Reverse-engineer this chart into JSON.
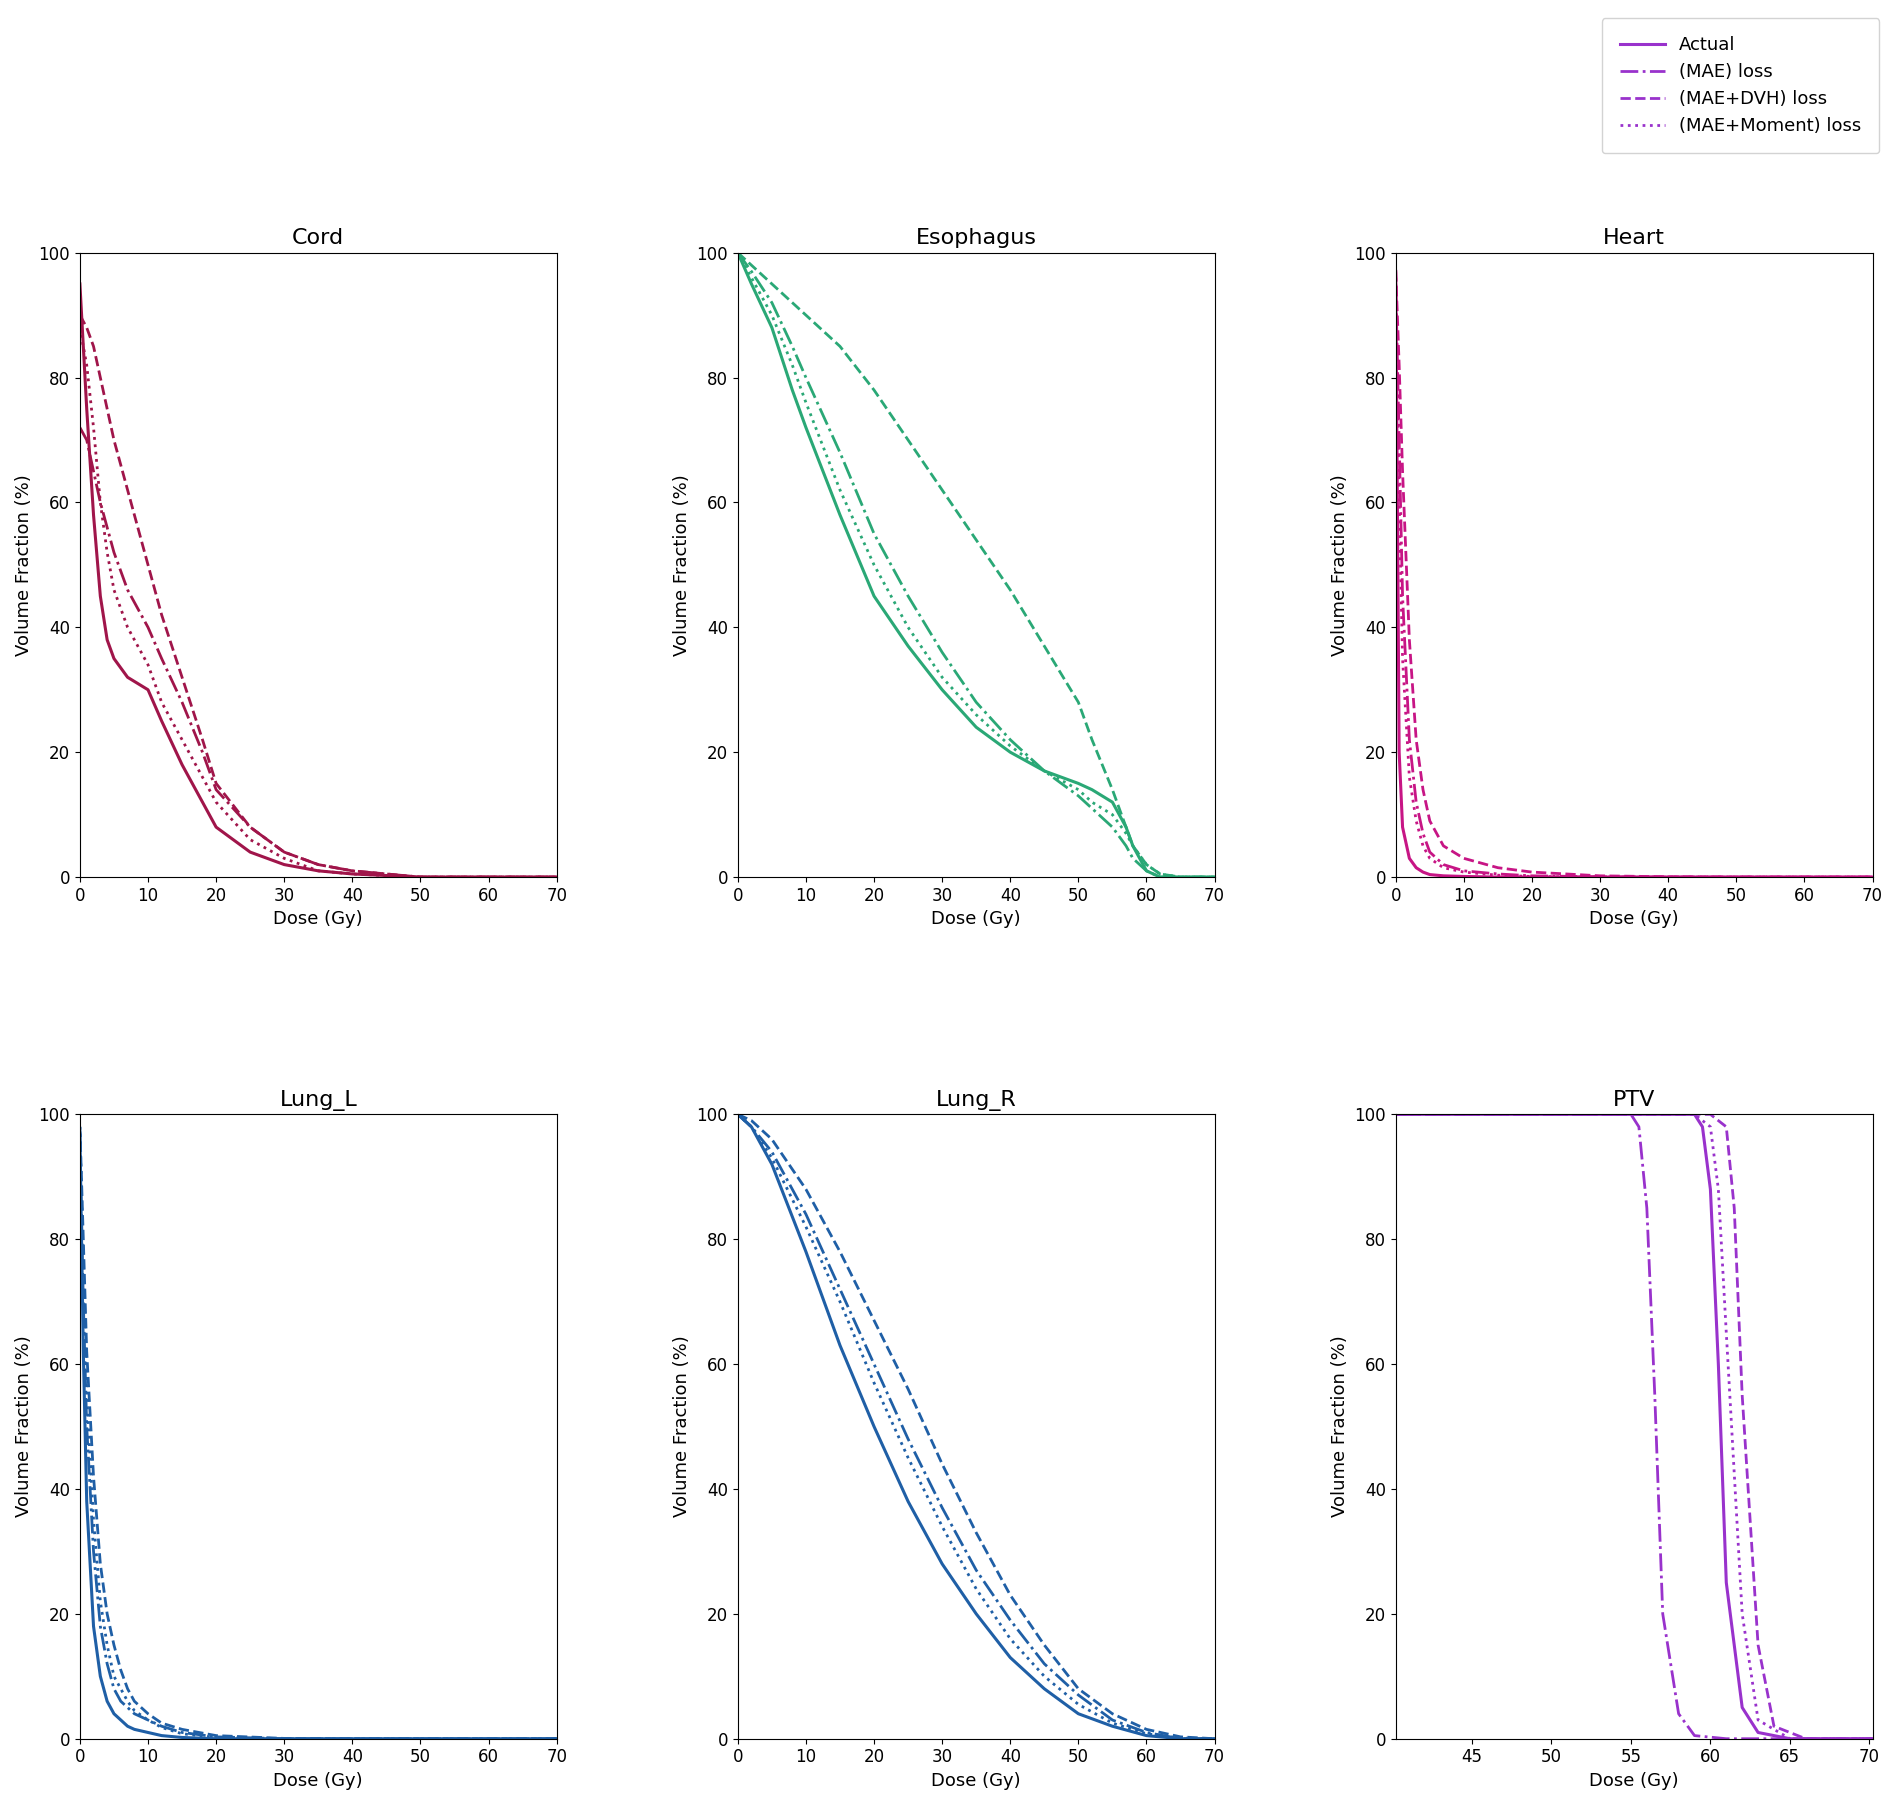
{
  "legend_labels": [
    "Actual",
    "(MAE) loss",
    "(MAE+DVH) loss",
    "(MAE+Moment) loss"
  ],
  "legend_linestyles": [
    "solid",
    "dashdot",
    "dashed",
    "dotted"
  ],
  "legend_color": "#9932CC",
  "subplots": [
    {
      "title": "Cord",
      "color": "#A0154A",
      "xlim": [
        0,
        70
      ],
      "ylim": [
        0,
        100
      ],
      "xlabel": "Dose (Gy)",
      "ylabel": "Volume Fraction (%)",
      "curves": {
        "actual": {
          "x": [
            0,
            1,
            2,
            3,
            4,
            5,
            7,
            10,
            12,
            15,
            18,
            20,
            25,
            30,
            35,
            40,
            50,
            60,
            70
          ],
          "y": [
            95,
            75,
            58,
            45,
            38,
            35,
            32,
            30,
            25,
            18,
            12,
            8,
            4,
            2,
            1,
            0.5,
            0,
            0,
            0
          ]
        },
        "mae": {
          "x": [
            0,
            1,
            2,
            3,
            4,
            5,
            7,
            10,
            12,
            15,
            18,
            20,
            25,
            30,
            35,
            40,
            50,
            60,
            70
          ],
          "y": [
            72,
            70,
            65,
            60,
            56,
            52,
            46,
            40,
            35,
            28,
            20,
            14,
            8,
            4,
            2,
            1,
            0,
            0,
            0
          ]
        },
        "mae_dvh": {
          "x": [
            0,
            1,
            2,
            3,
            4,
            5,
            7,
            10,
            12,
            15,
            18,
            20,
            25,
            30,
            35,
            40,
            50,
            60,
            70
          ],
          "y": [
            90,
            88,
            85,
            80,
            75,
            70,
            62,
            50,
            42,
            32,
            22,
            15,
            8,
            4,
            2,
            1,
            0,
            0,
            0
          ]
        },
        "mae_mom": {
          "x": [
            0,
            1,
            2,
            3,
            4,
            5,
            7,
            10,
            12,
            15,
            18,
            20,
            25,
            30,
            35,
            40,
            50,
            60,
            70
          ],
          "y": [
            88,
            82,
            72,
            60,
            52,
            46,
            40,
            34,
            28,
            22,
            16,
            12,
            6,
            3,
            1,
            0.5,
            0,
            0,
            0
          ]
        }
      }
    },
    {
      "title": "Esophagus",
      "color": "#2AA876",
      "xlim": [
        0,
        70
      ],
      "ylim": [
        0,
        100
      ],
      "xlabel": "Dose (Gy)",
      "ylabel": "Volume Fraction (%)",
      "curves": {
        "actual": {
          "x": [
            0,
            2,
            5,
            8,
            10,
            15,
            20,
            25,
            30,
            35,
            40,
            45,
            50,
            52,
            55,
            57,
            58,
            60,
            62,
            65,
            70
          ],
          "y": [
            100,
            95,
            88,
            78,
            72,
            58,
            45,
            37,
            30,
            24,
            20,
            17,
            15,
            14,
            12,
            8,
            5,
            1,
            0,
            0,
            0
          ]
        },
        "mae": {
          "x": [
            0,
            2,
            5,
            8,
            10,
            15,
            20,
            25,
            30,
            35,
            40,
            45,
            50,
            52,
            55,
            57,
            58,
            60,
            62,
            65,
            70
          ],
          "y": [
            100,
            97,
            92,
            85,
            80,
            68,
            55,
            45,
            36,
            28,
            22,
            17,
            13,
            11,
            8,
            5,
            3,
            1,
            0,
            0,
            0
          ]
        },
        "mae_dvh": {
          "x": [
            0,
            2,
            5,
            8,
            10,
            15,
            20,
            25,
            30,
            35,
            40,
            45,
            50,
            52,
            55,
            57,
            58,
            60,
            62,
            65,
            70
          ],
          "y": [
            100,
            98,
            95,
            92,
            90,
            85,
            78,
            70,
            62,
            54,
            46,
            37,
            28,
            22,
            14,
            8,
            5,
            2,
            0.5,
            0,
            0
          ]
        },
        "mae_mom": {
          "x": [
            0,
            2,
            5,
            8,
            10,
            15,
            20,
            25,
            30,
            35,
            40,
            45,
            50,
            52,
            55,
            57,
            58,
            60,
            62,
            65,
            70
          ],
          "y": [
            100,
            96,
            90,
            82,
            76,
            62,
            50,
            40,
            32,
            26,
            21,
            17,
            14,
            12,
            10,
            7,
            5,
            2,
            0.5,
            0,
            0
          ]
        }
      }
    },
    {
      "title": "Heart",
      "color": "#C71585",
      "xlim": [
        0,
        70
      ],
      "ylim": [
        0,
        100
      ],
      "xlabel": "Dose (Gy)",
      "ylabel": "Volume Fraction (%)",
      "curves": {
        "actual": {
          "x": [
            0,
            0.5,
            1,
            2,
            3,
            4,
            5,
            7,
            10,
            15,
            20,
            30,
            40,
            50,
            60,
            70
          ],
          "y": [
            97,
            20,
            8,
            3,
            1.5,
            0.8,
            0.4,
            0.2,
            0.1,
            0,
            0,
            0,
            0,
            0,
            0,
            0
          ]
        },
        "mae": {
          "x": [
            0,
            0.5,
            1,
            2,
            3,
            4,
            5,
            7,
            10,
            15,
            20,
            30,
            40,
            50,
            60,
            70
          ],
          "y": [
            95,
            70,
            45,
            22,
            12,
            7,
            4,
            2,
            1,
            0.5,
            0.2,
            0.05,
            0,
            0,
            0,
            0
          ]
        },
        "mae_dvh": {
          "x": [
            0,
            0.5,
            1,
            2,
            3,
            4,
            5,
            7,
            10,
            15,
            20,
            30,
            40,
            50,
            60,
            70
          ],
          "y": [
            97,
            82,
            65,
            38,
            22,
            14,
            9,
            5,
            3,
            1.5,
            0.8,
            0.2,
            0.05,
            0,
            0,
            0
          ]
        },
        "mae_mom": {
          "x": [
            0,
            0.5,
            1,
            2,
            3,
            4,
            5,
            7,
            10,
            15,
            20,
            30,
            40,
            50,
            60,
            70
          ],
          "y": [
            96,
            60,
            35,
            16,
            9,
            5,
            3,
            1.5,
            0.8,
            0.3,
            0.1,
            0,
            0,
            0,
            0,
            0
          ]
        }
      }
    },
    {
      "title": "Lung_L",
      "color": "#1F5FA6",
      "xlim": [
        0,
        70
      ],
      "ylim": [
        0,
        100
      ],
      "xlabel": "Dose (Gy)",
      "ylabel": "Volume Fraction (%)",
      "curves": {
        "actual": {
          "x": [
            0,
            0.5,
            1,
            2,
            3,
            4,
            5,
            6,
            7,
            8,
            10,
            12,
            15,
            20,
            30,
            40,
            50,
            60,
            70
          ],
          "y": [
            97,
            62,
            38,
            18,
            10,
            6,
            4,
            3,
            2,
            1.5,
            1,
            0.5,
            0.2,
            0,
            0,
            0,
            0,
            0,
            0
          ]
        },
        "mae": {
          "x": [
            0,
            0.5,
            1,
            2,
            3,
            4,
            5,
            6,
            7,
            8,
            10,
            12,
            15,
            20,
            30,
            40,
            50,
            60,
            70
          ],
          "y": [
            97,
            70,
            50,
            30,
            18,
            12,
            8,
            6,
            5,
            4,
            3,
            2,
            1,
            0.3,
            0,
            0,
            0,
            0,
            0
          ]
        },
        "mae_dvh": {
          "x": [
            0,
            0.5,
            1,
            2,
            3,
            4,
            5,
            6,
            7,
            8,
            10,
            12,
            15,
            20,
            30,
            40,
            50,
            60,
            70
          ],
          "y": [
            98,
            80,
            62,
            42,
            28,
            20,
            15,
            11,
            8,
            6,
            4,
            2.5,
            1.5,
            0.5,
            0.05,
            0,
            0,
            0,
            0
          ]
        },
        "mae_mom": {
          "x": [
            0,
            0.5,
            1,
            2,
            3,
            4,
            5,
            6,
            7,
            8,
            10,
            12,
            15,
            20,
            30,
            40,
            50,
            60,
            70
          ],
          "y": [
            98,
            75,
            55,
            35,
            22,
            15,
            10,
            8,
            6,
            4.5,
            3,
            1.8,
            0.8,
            0.2,
            0,
            0,
            0,
            0,
            0
          ]
        }
      }
    },
    {
      "title": "Lung_R",
      "color": "#1F5FA6",
      "xlim": [
        0,
        70
      ],
      "ylim": [
        0,
        100
      ],
      "xlabel": "Dose (Gy)",
      "ylabel": "Volume Fraction (%)",
      "curves": {
        "actual": {
          "x": [
            0,
            2,
            5,
            10,
            15,
            20,
            25,
            30,
            35,
            40,
            45,
            50,
            55,
            60,
            65,
            70
          ],
          "y": [
            100,
            98,
            92,
            78,
            63,
            50,
            38,
            28,
            20,
            13,
            8,
            4,
            2,
            0.5,
            0,
            0
          ]
        },
        "mae": {
          "x": [
            0,
            2,
            5,
            10,
            15,
            20,
            25,
            30,
            35,
            40,
            45,
            50,
            55,
            60,
            65,
            70
          ],
          "y": [
            100,
            98,
            94,
            84,
            72,
            60,
            48,
            37,
            27,
            19,
            12,
            7,
            3,
            1,
            0,
            0
          ]
        },
        "mae_dvh": {
          "x": [
            0,
            2,
            5,
            10,
            15,
            20,
            25,
            30,
            35,
            40,
            45,
            50,
            55,
            60,
            65,
            70
          ],
          "y": [
            100,
            99,
            96,
            88,
            78,
            67,
            56,
            44,
            33,
            23,
            15,
            8,
            4,
            1.5,
            0.3,
            0
          ]
        },
        "mae_mom": {
          "x": [
            0,
            2,
            5,
            10,
            15,
            20,
            25,
            30,
            35,
            40,
            45,
            50,
            55,
            60,
            65,
            70
          ],
          "y": [
            100,
            98,
            93,
            82,
            70,
            57,
            45,
            34,
            24,
            16,
            10,
            5.5,
            2.5,
            0.8,
            0.1,
            0
          ]
        }
      }
    },
    {
      "title": "PTV",
      "color": "#9932CC",
      "xlim": [
        40.2,
        70.2
      ],
      "ylim": [
        0,
        100
      ],
      "xlabel": "Dose (Gy)",
      "ylabel": "Volume Fraction (%)",
      "curves": {
        "actual": {
          "x": [
            40.2,
            50,
            54,
            56,
            58,
            59,
            59.5,
            60,
            60.5,
            61,
            62,
            63,
            65,
            70.2
          ],
          "y": [
            100,
            100,
            100,
            100,
            100,
            100,
            98,
            88,
            60,
            25,
            5,
            1,
            0,
            0
          ]
        },
        "mae": {
          "x": [
            40.2,
            48,
            50,
            52,
            54,
            55,
            55.5,
            56,
            56.5,
            57,
            58,
            59,
            61,
            70.2
          ],
          "y": [
            100,
            100,
            100,
            100,
            100,
            100,
            98,
            85,
            55,
            20,
            4,
            0.5,
            0,
            0
          ]
        },
        "mae_dvh": {
          "x": [
            40.2,
            50,
            52,
            54,
            56,
            58,
            60,
            61,
            61.5,
            62,
            63,
            64,
            66,
            70.2
          ],
          "y": [
            100,
            100,
            100,
            100,
            100,
            100,
            100,
            98,
            85,
            55,
            15,
            2,
            0,
            0
          ]
        },
        "mae_mom": {
          "x": [
            40.2,
            50,
            52,
            54,
            56,
            58,
            59,
            60,
            60.5,
            61,
            62,
            63,
            65,
            70.2
          ],
          "y": [
            100,
            100,
            100,
            100,
            100,
            100,
            100,
            98,
            88,
            65,
            20,
            3,
            0,
            0
          ]
        }
      }
    }
  ]
}
